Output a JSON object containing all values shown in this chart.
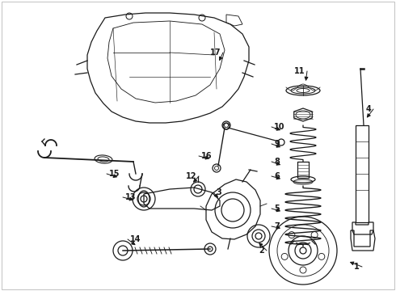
{
  "bg_color": "#ffffff",
  "line_color": "#1a1a1a",
  "fig_width": 4.9,
  "fig_height": 3.6,
  "dpi": 100,
  "callouts": [
    [
      1,
      430,
      323,
      448,
      330,
      "left"
    ],
    [
      2,
      318,
      298,
      330,
      310,
      "left"
    ],
    [
      3,
      272,
      247,
      264,
      238,
      "right"
    ],
    [
      4,
      452,
      148,
      462,
      135,
      "left"
    ],
    [
      5,
      350,
      262,
      336,
      258,
      "right"
    ],
    [
      6,
      350,
      222,
      336,
      218,
      "right"
    ],
    [
      7,
      350,
      283,
      336,
      280,
      "right"
    ],
    [
      8,
      350,
      205,
      336,
      200,
      "right"
    ],
    [
      9,
      350,
      183,
      336,
      178,
      "right"
    ],
    [
      10,
      350,
      162,
      336,
      157,
      "right"
    ],
    [
      11,
      378,
      103,
      380,
      88,
      "left"
    ],
    [
      12,
      237,
      228,
      246,
      218,
      "left"
    ],
    [
      13,
      168,
      248,
      152,
      244,
      "right"
    ],
    [
      14,
      170,
      305,
      158,
      296,
      "right"
    ],
    [
      15,
      148,
      220,
      132,
      215,
      "right"
    ],
    [
      16,
      262,
      197,
      246,
      193,
      "right"
    ],
    [
      17,
      270,
      78,
      276,
      65,
      "left"
    ]
  ]
}
